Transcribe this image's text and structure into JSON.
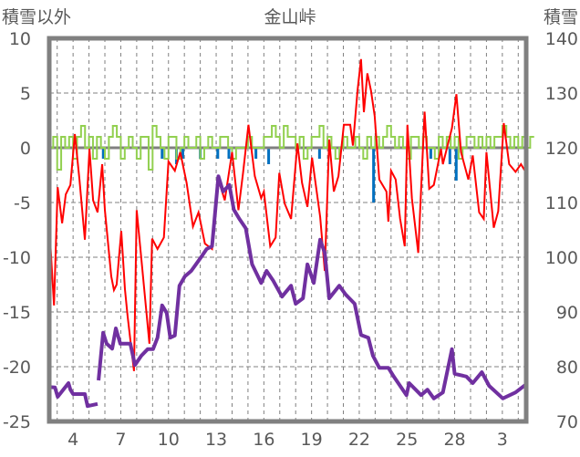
{
  "chart_data": {
    "type": "line",
    "title": "金山峠",
    "ylabel_left": "積雪以外",
    "ylabel_right": "積雪",
    "ylim_left": [
      -25,
      10
    ],
    "ylim_right": [
      70,
      140
    ],
    "yticks_left": [
      10,
      5,
      0,
      -5,
      -10,
      -15,
      -20,
      -25
    ],
    "yticks_right": [
      140,
      130,
      120,
      110,
      100,
      90,
      80,
      70
    ],
    "xlim_days": [
      2.5,
      32.5
    ],
    "xticks": [
      {
        "day": 4,
        "label": "4"
      },
      {
        "day": 7,
        "label": "7"
      },
      {
        "day": 10,
        "label": "10"
      },
      {
        "day": 13,
        "label": "13"
      },
      {
        "day": 16,
        "label": "16"
      },
      {
        "day": 19,
        "label": "19"
      },
      {
        "day": 22,
        "label": "22"
      },
      {
        "day": 25,
        "label": "25"
      },
      {
        "day": 28,
        "label": "28"
      },
      {
        "day": 31,
        "label": "3"
      }
    ],
    "grid": true,
    "colors": {
      "temperature": "#ff0000",
      "snow_depth": "#7030a0",
      "change": "#92d050",
      "precip": "#0070c0",
      "zero": "#808080",
      "frame": "#808080"
    },
    "series": [
      {
        "name": "temperature",
        "axis": "left",
        "points": [
          [
            2.57,
            -8.75
          ],
          [
            2.8,
            -14.4
          ],
          [
            3.03,
            -3.6
          ],
          [
            3.31,
            -6.9
          ],
          [
            3.54,
            -4.25
          ],
          [
            3.83,
            -3.4
          ],
          [
            4.11,
            1.25
          ],
          [
            4.4,
            -2.9
          ],
          [
            4.74,
            -8.4
          ],
          [
            5.03,
            -0.1
          ],
          [
            5.26,
            -4.8
          ],
          [
            5.54,
            -5.9
          ],
          [
            5.83,
            -1.5
          ],
          [
            6.0,
            -5.7
          ],
          [
            6.4,
            -11.75
          ],
          [
            6.57,
            -13
          ],
          [
            6.74,
            -12.5
          ],
          [
            7.03,
            -7.6
          ],
          [
            7.26,
            -12.9
          ],
          [
            7.43,
            -15.4
          ],
          [
            7.83,
            -20.4
          ],
          [
            8.0,
            -5.7
          ],
          [
            8.29,
            -10.1
          ],
          [
            8.8,
            -17.9
          ],
          [
            8.97,
            -8.3
          ],
          [
            9.31,
            -9.25
          ],
          [
            9.71,
            -8.2
          ],
          [
            10.0,
            -1.25
          ],
          [
            10.4,
            -2.1
          ],
          [
            10.74,
            -0.4
          ],
          [
            11.14,
            -3.2
          ],
          [
            11.54,
            -7.2
          ],
          [
            11.89,
            -5.9
          ],
          [
            12.29,
            -8.75
          ],
          [
            12.74,
            -9.25
          ],
          [
            13.14,
            -2.9
          ],
          [
            13.54,
            -4.8
          ],
          [
            14.0,
            -0.4
          ],
          [
            14.4,
            -5.7
          ],
          [
            14.69,
            -2.3
          ],
          [
            15.03,
            2.1
          ],
          [
            15.43,
            -2.6
          ],
          [
            15.83,
            -4.6
          ],
          [
            16.0,
            -4
          ],
          [
            16.4,
            -9
          ],
          [
            16.74,
            -8.2
          ],
          [
            16.97,
            -2.3
          ],
          [
            17.31,
            -5.1
          ],
          [
            17.71,
            -6.5
          ],
          [
            18.11,
            0.4
          ],
          [
            18.4,
            -3.2
          ],
          [
            18.74,
            -5.4
          ],
          [
            19.03,
            -0.9
          ],
          [
            19.54,
            -6.3
          ],
          [
            19.83,
            -11.25
          ],
          [
            20.11,
            0.75
          ],
          [
            20.4,
            -4
          ],
          [
            20.69,
            -2.6
          ],
          [
            21.03,
            2.1
          ],
          [
            21.43,
            2.1
          ],
          [
            21.6,
            0.2
          ],
          [
            21.89,
            5.2
          ],
          [
            22.11,
            8.1
          ],
          [
            22.29,
            3.25
          ],
          [
            22.51,
            6.8
          ],
          [
            22.74,
            5.2
          ],
          [
            22.97,
            2.9
          ],
          [
            23.26,
            -2.9
          ],
          [
            23.71,
            -4
          ],
          [
            23.83,
            -6.75
          ],
          [
            24.0,
            -2.1
          ],
          [
            24.29,
            -2.9
          ],
          [
            24.57,
            -6.5
          ],
          [
            24.86,
            -9
          ],
          [
            25.03,
            2.1
          ],
          [
            25.31,
            -4.6
          ],
          [
            25.71,
            -9.6
          ],
          [
            26.11,
            3.3
          ],
          [
            26.4,
            -3.75
          ],
          [
            26.69,
            -3.4
          ],
          [
            27.14,
            -0.1
          ],
          [
            27.26,
            -1.5
          ],
          [
            27.83,
            1.8
          ],
          [
            28.11,
            4.9
          ],
          [
            28.4,
            -0.4
          ],
          [
            28.86,
            -2.9
          ],
          [
            29.14,
            -0.7
          ],
          [
            29.54,
            -5.9
          ],
          [
            29.83,
            -6.5
          ],
          [
            30.0,
            -0.4
          ],
          [
            30.46,
            -7.3
          ],
          [
            30.74,
            -5.8
          ],
          [
            31.09,
            2.25
          ],
          [
            31.43,
            -1.5
          ],
          [
            31.83,
            -2.2
          ],
          [
            32.17,
            -1.5
          ],
          [
            32.46,
            -2.2
          ]
        ]
      },
      {
        "name": "snow_depth",
        "axis": "right",
        "segments": [
          [
            [
              2.46,
              76.3
            ],
            [
              2.86,
              76.2
            ],
            [
              3.03,
              74.5
            ],
            [
              3.71,
              77
            ],
            [
              3.83,
              75.8
            ],
            [
              4.0,
              75
            ],
            [
              4.74,
              75
            ],
            [
              4.91,
              72.8
            ],
            [
              5.54,
              73.2
            ]
          ],
          [
            [
              5.6,
              77.5
            ],
            [
              5.89,
              86.2
            ],
            [
              6.11,
              84.2
            ],
            [
              6.46,
              83.3
            ],
            [
              6.69,
              87
            ],
            [
              6.97,
              84.2
            ],
            [
              7.6,
              84.2
            ],
            [
              7.89,
              80.3
            ],
            [
              8.29,
              82
            ],
            [
              8.69,
              83.2
            ],
            [
              9.03,
              83.2
            ],
            [
              9.31,
              85.3
            ],
            [
              9.6,
              91.2
            ],
            [
              9.89,
              89.8
            ],
            [
              10.11,
              85.3
            ],
            [
              10.4,
              85.7
            ],
            [
              10.69,
              94.8
            ],
            [
              11.03,
              96.5
            ],
            [
              11.43,
              97.5
            ],
            [
              12.0,
              99.8
            ],
            [
              12.4,
              101.5
            ],
            [
              12.74,
              102
            ],
            [
              13.14,
              114.8
            ],
            [
              13.43,
              112
            ],
            [
              13.83,
              113.2
            ],
            [
              14.11,
              108.7
            ],
            [
              14.46,
              107
            ],
            [
              14.86,
              105.3
            ],
            [
              15.26,
              98.7
            ],
            [
              15.83,
              95.3
            ],
            [
              16.17,
              97.5
            ],
            [
              16.57,
              95.8
            ],
            [
              17.14,
              92.8
            ],
            [
              17.71,
              94.8
            ],
            [
              18.0,
              91.5
            ],
            [
              18.46,
              92.5
            ],
            [
              18.74,
              98.7
            ],
            [
              19.14,
              95.3
            ],
            [
              19.54,
              103.2
            ],
            [
              19.83,
              100.8
            ],
            [
              20.11,
              92.5
            ],
            [
              20.74,
              94.8
            ],
            [
              21.14,
              93.2
            ],
            [
              21.71,
              91.5
            ],
            [
              22.11,
              85.8
            ],
            [
              22.57,
              85.3
            ],
            [
              22.86,
              82
            ],
            [
              23.26,
              79.8
            ],
            [
              23.83,
              79.8
            ],
            [
              24.17,
              78.2
            ],
            [
              24.97,
              74.8
            ],
            [
              25.14,
              77
            ],
            [
              25.89,
              74.8
            ],
            [
              26.29,
              75.8
            ],
            [
              26.69,
              74.2
            ],
            [
              27.26,
              75.3
            ],
            [
              27.83,
              83.2
            ],
            [
              28.0,
              78.7
            ],
            [
              28.74,
              78.2
            ],
            [
              29.14,
              77
            ],
            [
              29.71,
              79
            ],
            [
              30.17,
              76.5
            ],
            [
              31.03,
              74.2
            ],
            [
              31.83,
              75.3
            ],
            [
              32.46,
              76.7
            ]
          ]
        ]
      },
      {
        "name": "change",
        "axis": "left",
        "start_day": 2.5,
        "step_day": 0.25,
        "values": [
          0,
          1,
          -2,
          1,
          0,
          1,
          -1,
          1,
          2,
          0,
          1,
          -1,
          1,
          0,
          -1,
          1,
          2,
          1,
          -1,
          0,
          1,
          0,
          -1,
          1,
          1,
          -2,
          2,
          1,
          0,
          -1,
          1,
          1,
          -1,
          0,
          1,
          0,
          0,
          1,
          -1,
          0,
          1,
          0,
          0,
          1,
          1,
          0,
          -1,
          0,
          0,
          0,
          1,
          0,
          0,
          0,
          1,
          1,
          2,
          1,
          0,
          2,
          1,
          1,
          0,
          1,
          -1,
          0,
          1,
          1,
          2,
          0,
          1,
          0,
          -1,
          0,
          1,
          0,
          0,
          1,
          0,
          -1,
          1,
          0,
          1,
          0,
          1,
          2,
          1,
          0,
          1,
          0,
          -1,
          1,
          1,
          0,
          1,
          0,
          0,
          -1,
          1,
          0,
          1,
          0,
          1,
          -1,
          0,
          1,
          1,
          0,
          1,
          0,
          1,
          0,
          1,
          1,
          2,
          1,
          0,
          1,
          0,
          1,
          0,
          1
        ]
      },
      {
        "name": "precip",
        "axis": "left",
        "type": "bar",
        "points": [
          [
            5.9,
            -1
          ],
          [
            9.6,
            -1
          ],
          [
            10.5,
            -1.5
          ],
          [
            10.9,
            -1
          ],
          [
            12.0,
            -1
          ],
          [
            13.1,
            -1
          ],
          [
            13.8,
            -1
          ],
          [
            15.5,
            -1
          ],
          [
            16.3,
            -1.5
          ],
          [
            19.5,
            -1
          ],
          [
            22.9,
            -5
          ],
          [
            26.5,
            -1
          ],
          [
            27.7,
            -1.5
          ],
          [
            28.1,
            -3
          ]
        ]
      }
    ]
  }
}
